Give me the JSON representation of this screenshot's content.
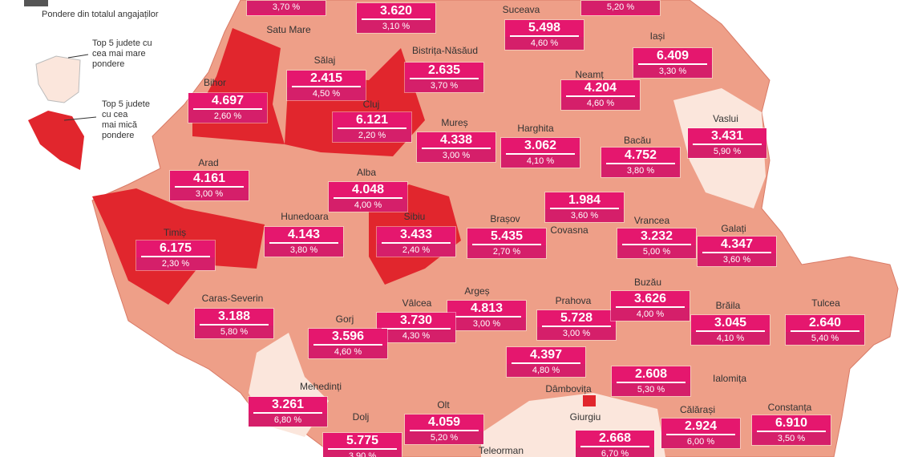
{
  "legend": {
    "title": "Pondere din totalul angajaților",
    "top_high": [
      "Top 5 judete cu",
      "cea mai mare",
      "pondere"
    ],
    "top_low": [
      "Top 5 judete",
      "cu cea",
      "mai mică",
      "pondere"
    ]
  },
  "counties": [
    {
      "share": "3,70 %"
    },
    {
      "employees": "3.620",
      "share": "3,10 %"
    },
    {
      "name": "Satu Mare"
    },
    {
      "name": "Suceava",
      "employees": "5.498",
      "share": "4,60 %"
    },
    {
      "share": "5,20 %"
    },
    {
      "name": "Iași",
      "employees": "6.409",
      "share": "3,30 %"
    },
    {
      "name": "Sălaj",
      "employees": "2.415",
      "share": "4,50 %"
    },
    {
      "name": "Bistrița-Năsăud",
      "employees": "2.635",
      "share": "3,70 %"
    },
    {
      "name": "Bihor",
      "employees": "4.697",
      "share": "2,60 %"
    },
    {
      "name": "Neamț",
      "employees": "4.204",
      "share": "4,60 %"
    },
    {
      "name": "Cluj",
      "employees": "6.121",
      "share": "2,20 %"
    },
    {
      "name": "Vaslui",
      "employees": "3.431",
      "share": "5,90 %"
    },
    {
      "name": "Mureș",
      "employees": "4.338",
      "share": "3,00 %"
    },
    {
      "name": "Harghita",
      "employees": "3.062",
      "share": "4,10 %"
    },
    {
      "name": "Bacău",
      "employees": "4.752",
      "share": "3,80 %"
    },
    {
      "name": "Arad",
      "employees": "4.161",
      "share": "3,00 %"
    },
    {
      "name": "Alba",
      "employees": "4.048",
      "share": "4,00 %"
    },
    {
      "name": "Covasna",
      "employees": "1.984",
      "share": "3,60 %"
    },
    {
      "name": "Hunedoara",
      "employees": "4.143",
      "share": "3,80 %"
    },
    {
      "name": "Timiș",
      "employees": "6.175",
      "share": "2,30 %"
    },
    {
      "name": "Sibiu",
      "employees": "3.433",
      "share": "2,40 %"
    },
    {
      "name": "Brașov",
      "employees": "5.435",
      "share": "2,70 %"
    },
    {
      "name": "Vrancea",
      "employees": "3.232",
      "share": "5,00 %"
    },
    {
      "name": "Galați",
      "employees": "4.347",
      "share": "3,60 %"
    },
    {
      "name": "Caras-Severin",
      "employees": "3.188",
      "share": "5,80 %"
    },
    {
      "name": "Argeș",
      "employees": "4.813",
      "share": "3,00 %"
    },
    {
      "name": "Vâlcea",
      "employees": "3.730",
      "share": "4,30 %"
    },
    {
      "name": "Prahova",
      "employees": "5.728",
      "share": "3,00 %"
    },
    {
      "name": "Buzău",
      "employees": "3.626",
      "share": "4,00 %"
    },
    {
      "name": "Gorj",
      "employees": "3.596",
      "share": "4,60 %"
    },
    {
      "name": "Brăila",
      "employees": "3.045",
      "share": "4,10 %"
    },
    {
      "name": "Tulcea",
      "employees": "2.640",
      "share": "5,40 %"
    },
    {
      "name": "Dâmbovița",
      "employees": "4.397",
      "share": "4,80 %"
    },
    {
      "name": "Ialomița",
      "employees": "2.608",
      "share": "5,30 %"
    },
    {
      "name": "Mehedinți",
      "employees": "3.261",
      "share": "6,80 %"
    },
    {
      "name": "Olt",
      "employees": "4.059",
      "share": "5,20 %"
    },
    {
      "name": "Dolj",
      "employees": "5.775",
      "share": "3,90 %"
    },
    {
      "name": "Giurgiu",
      "employees": "2.668",
      "share": "6,70 %"
    },
    {
      "name": "Călărași",
      "employees": "2.924",
      "share": "6,00 %"
    },
    {
      "name": "Constanța",
      "employees": "6.910",
      "share": "3,50 %"
    },
    {
      "name": "Teleorman"
    }
  ]
}
